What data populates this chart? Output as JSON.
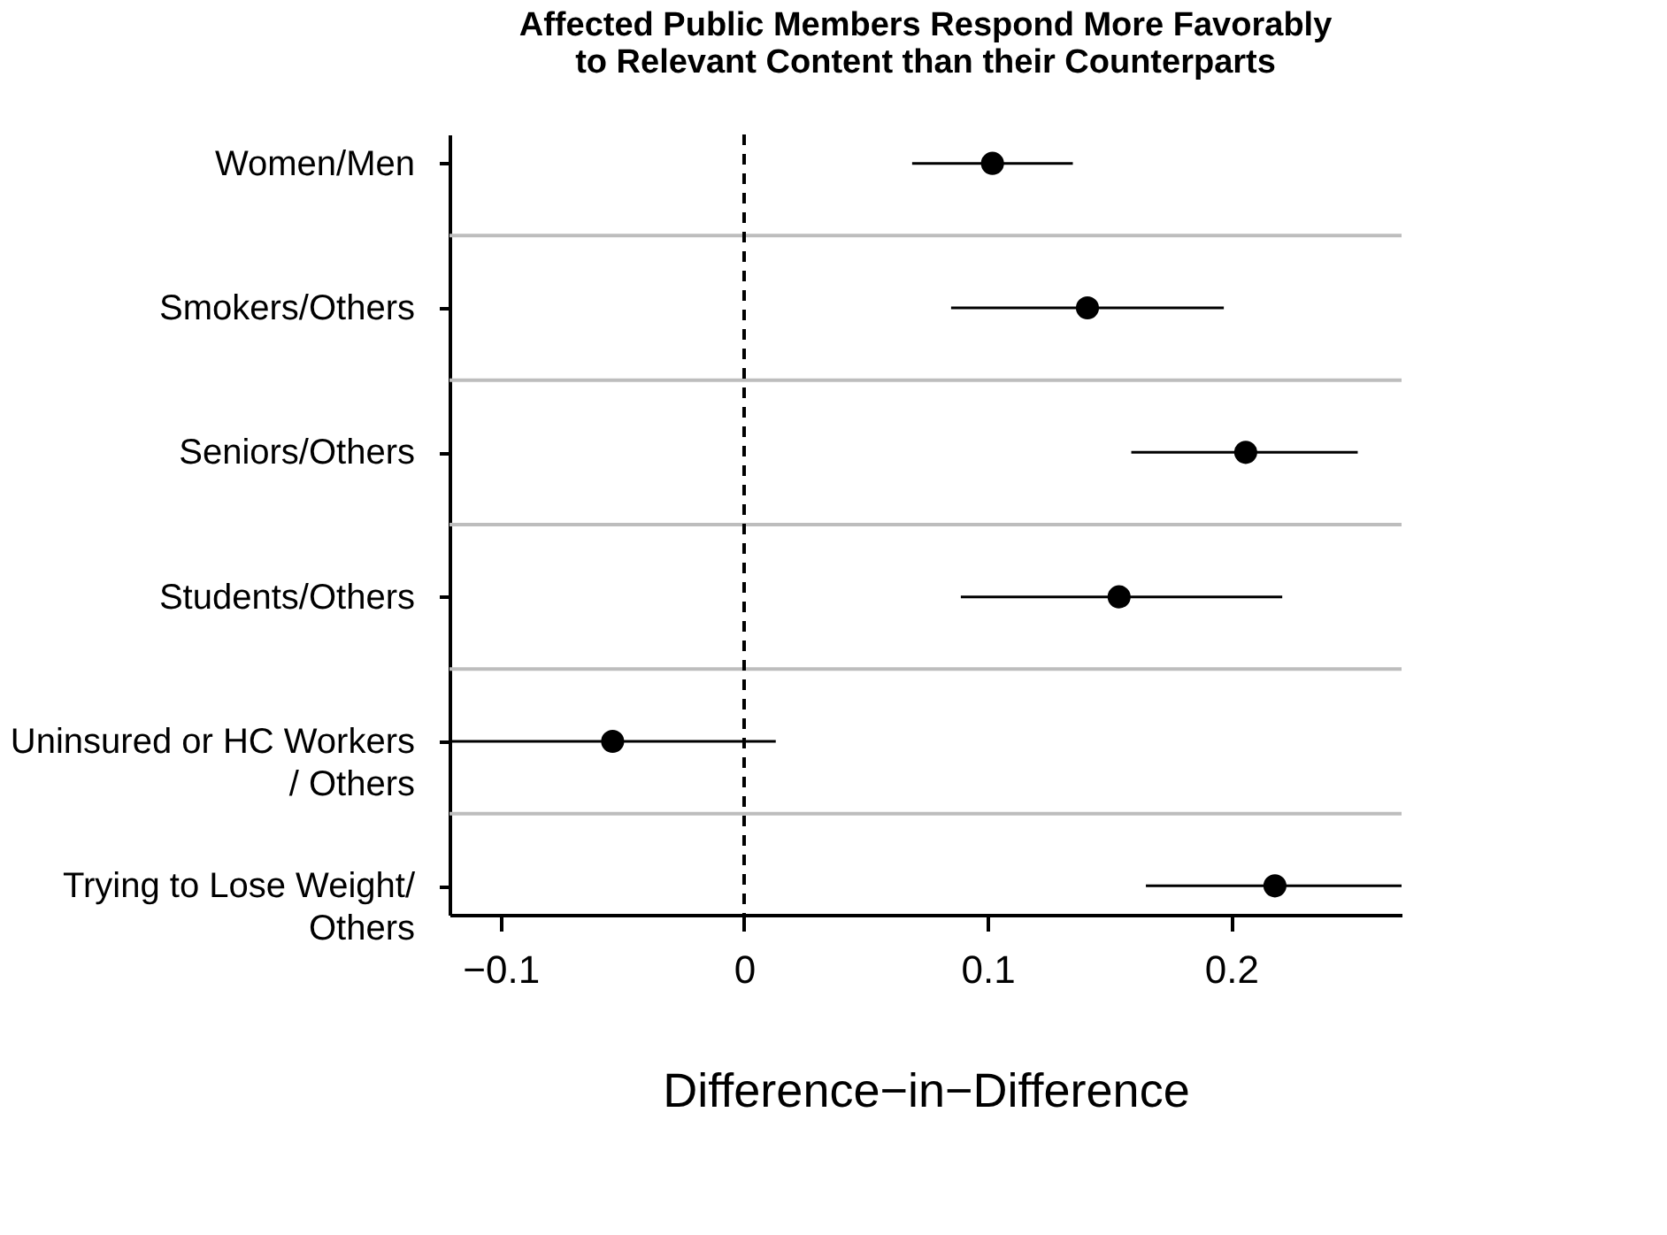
{
  "chart_data": {
    "type": "scatter",
    "orientation": "horizontal",
    "title": "Affected Public Members Respond More Favorably\nto Relevant Content than their Counterparts",
    "xlabel": "Difference−in−Difference",
    "categories": [
      "Women/Men",
      "Smokers/Others",
      "Seniors/Others",
      "Students/Others",
      "Uninsured or HC Workers\n/ Others",
      "Trying to Lose Weight/\nOthers"
    ],
    "values": [
      0.102,
      0.141,
      0.206,
      0.154,
      -0.054,
      0.218
    ],
    "errors": [
      [
        0.069,
        0.135
      ],
      [
        0.085,
        0.197
      ],
      [
        0.159,
        0.252
      ],
      [
        0.089,
        0.221
      ],
      [
        -0.121,
        0.013
      ],
      [
        0.165,
        0.27
      ]
    ],
    "color": "#000000",
    "marker": "circle",
    "xlim": [
      -0.121,
      0.27
    ],
    "xticks": [
      {
        "value": -0.1,
        "label": "−0.1"
      },
      0,
      0.1,
      0.2
    ],
    "ref_lines": [
      {
        "axis": "x",
        "value": 0,
        "line_style": "dashed",
        "color": "#000000"
      }
    ],
    "grid": "y"
  }
}
